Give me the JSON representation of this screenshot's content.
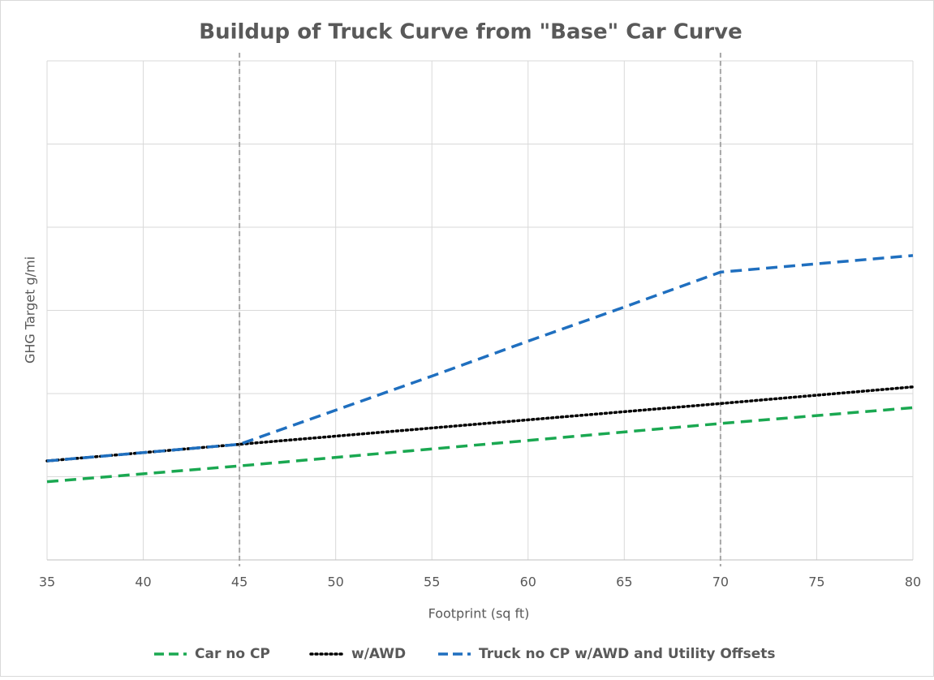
{
  "chart_data": {
    "type": "line",
    "title": "Buildup of Truck Curve from \"Base\" Car Curve",
    "xlabel": "Footprint (sq ft)",
    "ylabel": "GHG Target g/mi",
    "xlim": [
      35,
      80
    ],
    "xticks": [
      35,
      40,
      45,
      50,
      55,
      60,
      65,
      70,
      75,
      80
    ],
    "ylim": [
      0,
      6
    ],
    "ygrid": [
      0,
      1,
      2,
      3,
      4,
      5,
      6
    ],
    "vlines": [
      45,
      70
    ],
    "grid": true,
    "legend": "bottom",
    "series": [
      {
        "name": "Car no CP",
        "color": "#1aa851",
        "style": "dashed",
        "x": [
          35,
          45,
          70,
          80
        ],
        "values": [
          0.94,
          1.13,
          1.64,
          1.83
        ]
      },
      {
        "name": "w/AWD",
        "color": "#000000",
        "style": "dotted",
        "x": [
          35,
          45,
          70,
          80
        ],
        "values": [
          1.19,
          1.39,
          1.88,
          2.08
        ]
      },
      {
        "name": "Truck no CP w/AWD and Utility Offsets",
        "color": "#1f6fbf",
        "style": "dashed",
        "x": [
          35,
          45,
          55,
          60,
          65,
          70,
          80
        ],
        "values": [
          1.19,
          1.39,
          2.21,
          2.63,
          3.04,
          3.46,
          3.66
        ]
      }
    ]
  }
}
